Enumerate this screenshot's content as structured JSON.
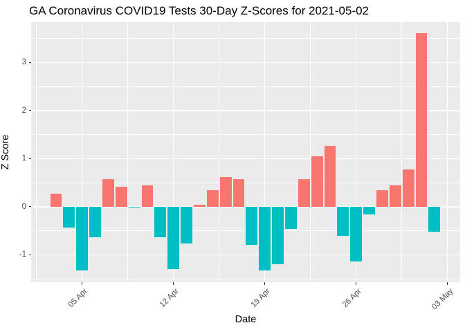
{
  "title": "GA Coronavirus COVID19 Tests 30-Day Z-Scores for 2021-05-02",
  "chart_data": {
    "type": "bar",
    "title": "GA Coronavirus COVID19 Tests 30-Day Z-Scores for 2021-05-02",
    "xlabel": "Date",
    "ylabel": "Z Score",
    "x": [
      "2021-04-03",
      "2021-04-04",
      "2021-04-05",
      "2021-04-06",
      "2021-04-07",
      "2021-04-08",
      "2021-04-09",
      "2021-04-10",
      "2021-04-11",
      "2021-04-12",
      "2021-04-13",
      "2021-04-14",
      "2021-04-15",
      "2021-04-16",
      "2021-04-17",
      "2021-04-18",
      "2021-04-19",
      "2021-04-20",
      "2021-04-21",
      "2021-04-22",
      "2021-04-23",
      "2021-04-24",
      "2021-04-25",
      "2021-04-26",
      "2021-04-27",
      "2021-04-28",
      "2021-04-29",
      "2021-04-30",
      "2021-05-01",
      "2021-05-02"
    ],
    "values": [
      0.27,
      -0.43,
      -1.32,
      -0.64,
      0.58,
      0.41,
      -0.02,
      0.45,
      -0.63,
      -1.3,
      -0.77,
      0.04,
      0.35,
      0.61,
      0.58,
      -0.8,
      -1.32,
      -1.19,
      -0.46,
      0.57,
      1.05,
      1.26,
      -0.6,
      -1.14,
      -0.16,
      0.35,
      0.45,
      0.77,
      3.61,
      -0.52
    ],
    "positive_color": "#F8766D",
    "negative_color": "#00BFC4",
    "panel_bg": "#EBEBEB",
    "grid_color": "#FFFFFF",
    "tick_label_color": "#4D4D4D",
    "x_tick_labels": [
      "05 Apr",
      "12 Apr",
      "19 Apr",
      "26 Apr",
      "03 May"
    ],
    "x_tick_day_index": [
      2,
      9,
      16,
      23,
      30
    ],
    "x_minor_day_index": [
      -1.5,
      5.5,
      12.5,
      19.5,
      26.5
    ],
    "y_ticks": [
      -1,
      0,
      1,
      2,
      3
    ],
    "y_minor": [
      -1.5,
      -0.5,
      0.5,
      1.5,
      2.5,
      3.5
    ],
    "ylim": [
      -1.57,
      3.84
    ],
    "xlim_days": [
      -1.909,
      30.97
    ],
    "bar_width_days": 0.9,
    "legend": "none",
    "grid": "on"
  }
}
